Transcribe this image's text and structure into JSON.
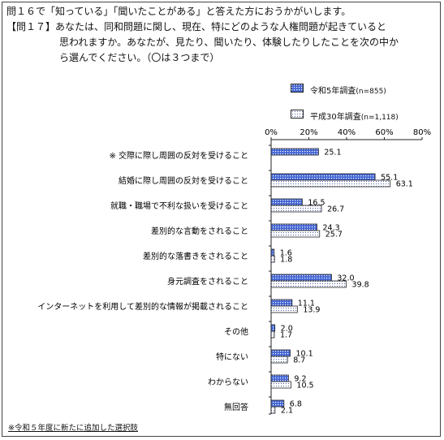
{
  "question": {
    "line1": "問１６で「知っている」「聞いたことがある」と答えた方におうかがいします。",
    "line2": "【問１７】あなたは、同和問題に関し、現在、特にどのような人権問題が起きていると",
    "line3": "思われますか。あなたが、見たり、聞いたり、体験したりしたことを次の中か",
    "line4": "ら選んでください。（〇は３つまで）"
  },
  "footnote": "※令和５年度に新たに追加した選択肢",
  "chart_data": {
    "type": "bar",
    "orientation": "horizontal",
    "categories": [
      "※ 交際に際し周囲の反対を受けること",
      "結婚に際し周囲の反対を受けること",
      "就職・職場で不利な扱いを受けること",
      "差別的な言動をされること",
      "差別的な落書きをされること",
      "身元調査をされること",
      "インターネットを利用して差別的な情報が掲載されること",
      "その他",
      "特にない",
      "わからない",
      "無回答"
    ],
    "series": [
      {
        "name": "令和5年調査",
        "n_label": "(n=855)",
        "values": [
          25.1,
          55.1,
          16.5,
          24.3,
          1.6,
          32.0,
          11.1,
          2.0,
          10.1,
          9.2,
          6.8
        ],
        "labels": [
          "25.1",
          "55.1",
          "16.5",
          "24.3",
          "1.6",
          "32.0",
          "11.1",
          "2.0",
          "10.1",
          "9.2",
          "6.8"
        ],
        "pattern": "dense-dots",
        "color": "#2f55c8"
      },
      {
        "name": "平成30年調査",
        "n_label": "(n=1,118)",
        "values": [
          null,
          63.1,
          26.7,
          25.7,
          1.8,
          39.8,
          13.9,
          1.7,
          8.7,
          10.5,
          2.1
        ],
        "labels": [
          "",
          "63.1",
          "26.7",
          "25.7",
          "1.8",
          "39.8",
          "13.9",
          "1.7",
          "8.7",
          "10.5",
          "2.1"
        ],
        "pattern": "sparse-dots",
        "color": "#4a5fa8"
      }
    ],
    "xlim": [
      0,
      80
    ],
    "xticks": [
      "0%",
      "20%",
      "40%",
      "60%",
      "80%"
    ],
    "grid": false,
    "legend_position": "top-right"
  }
}
